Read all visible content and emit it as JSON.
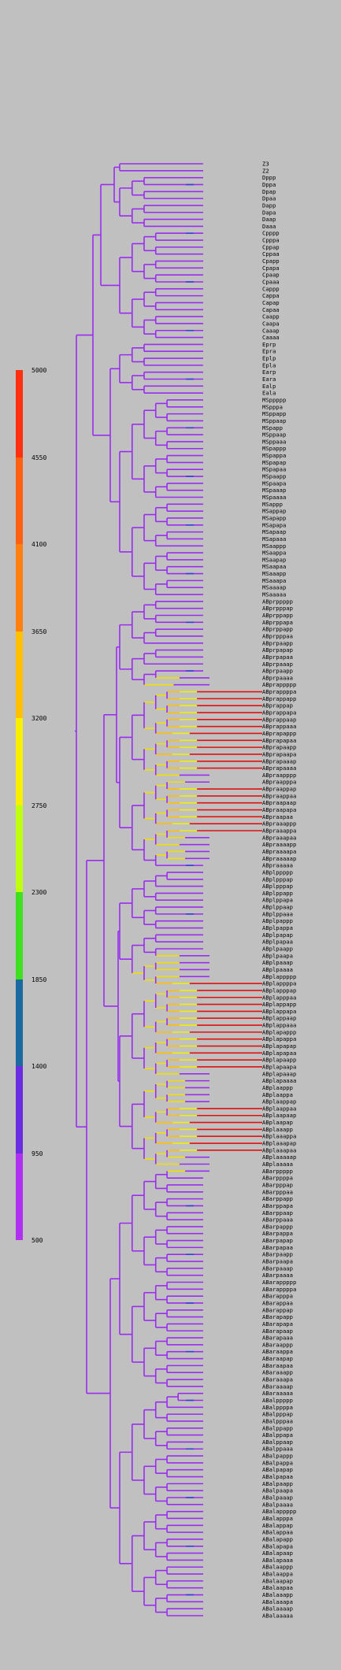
{
  "chart_data": {
    "type": "dendrogram",
    "color_scale": {
      "ticks": [
        5000,
        4550,
        4100,
        3650,
        3200,
        2750,
        2300,
        1850,
        1400,
        950,
        500
      ],
      "ticks_text": [
        "5000",
        "4550",
        "4100",
        "3650",
        "3200",
        "2750",
        "2300",
        "1850",
        "1400",
        "950",
        "500"
      ],
      "bands": [
        {
          "from": 500,
          "to": 950,
          "color": "#b030f0"
        },
        {
          "from": 950,
          "to": 1400,
          "color": "#6a2ce0"
        },
        {
          "from": 1400,
          "to": 1850,
          "color": "#1a6aa0"
        },
        {
          "from": 1850,
          "to": 2300,
          "color": "#40e020"
        },
        {
          "from": 2300,
          "to": 2750,
          "color": "#c0ff10"
        },
        {
          "from": 2750,
          "to": 3200,
          "color": "#f8f000"
        },
        {
          "from": 3200,
          "to": 3650,
          "color": "#ffc000"
        },
        {
          "from": 3650,
          "to": 4100,
          "color": "#ff8010"
        },
        {
          "from": 4100,
          "to": 4550,
          "color": "#ff6010"
        },
        {
          "from": 4550,
          "to": 5000,
          "color": "#ff3010"
        }
      ]
    },
    "leaves": [
      "Z3",
      "Z2",
      "Dppp",
      "Dppa",
      "Dpap",
      "Dpaa",
      "Dapp",
      "Dapa",
      "Daap",
      "Daaa",
      "Cpppp",
      "Cpppa",
      "Cppap",
      "Cppaa",
      "Cpapp",
      "Cpapa",
      "Cpaap",
      "Cpaaa",
      "Cappp",
      "Cappa",
      "Capap",
      "Capaa",
      "Caapp",
      "Caapa",
      "Caaap",
      "Caaaa",
      "Eprp",
      "Epra",
      "Eplp",
      "Epla",
      "Earp",
      "Eara",
      "Ealp",
      "Eala",
      "MSppppp",
      "MSpppa",
      "MSppapp",
      "MSppaap",
      "MSpapp",
      "MSppaap",
      "MSppaaa",
      "MSpappp",
      "MSpappa",
      "MSpapap",
      "MSpapaa",
      "MSpaapp",
      "MSpaapa",
      "MSpaaap",
      "MSpaaaa",
      "MSappp",
      "MSappap",
      "MSapapp",
      "MSapapa",
      "MSapaap",
      "MSapaaa",
      "MSaappp",
      "MSaappa",
      "MSaapap",
      "MSaapaa",
      "MSaaapp",
      "MSaaapa",
      "MSaaaap",
      "MSaaaaa",
      "ABprppppp",
      "ABprpppap",
      "ABprppapp",
      "ABprppapa",
      "ABprppapp",
      "ABprpppaa",
      "ABprpaapp",
      "ABprpapap",
      "ABprpapaa",
      "ABprpaaap",
      "ABprpaapp",
      "ABprpaaaa",
      "ABprappppp",
      "ABprappppa",
      "ABprappapp",
      "ABprappap",
      "ABprappapa",
      "ABprappaap",
      "ABprappaaa",
      "ABprapappp",
      "ABprapapaa",
      "ABprapaapp",
      "ABprapaapa",
      "ABprapaaap",
      "ABprapaaaa",
      "ABpraapppp",
      "ABpraapppa",
      "ABpraappap",
      "ABpraappaa",
      "ABpraapaap",
      "ABpraapapa",
      "ABpraapaa",
      "ABpraaappp",
      "ABpraaappa",
      "ABpraaapaa",
      "ABpraaaapp",
      "ABpraaaapa",
      "ABpraaaaap",
      "ABpraaaaa",
      "ABplppppp",
      "ABplpppap",
      "ABplpppap",
      "ABplppapp",
      "ABplppapa",
      "ABplppaap",
      "ABplppaaa",
      "ABplpappp",
      "ABplpappa",
      "ABplpapap",
      "ABplpapaa",
      "ABplpaapp",
      "ABplpaapa",
      "ABplpaaap",
      "ABplpaaaa",
      "ABplappppp",
      "ABplappppa",
      "ABplapppap",
      "ABplapppaa",
      "ABplappapp",
      "ABplappapa",
      "ABplappaap",
      "ABplappaaa",
      "ABplapappp",
      "ABplapappa",
      "ABplapapap",
      "ABplapapaa",
      "ABplapaapp",
      "ABplapaapa",
      "ABplapaaap",
      "ABplapaaaa",
      "ABplaappp",
      "ABplaappa",
      "ABplaappap",
      "ABplaappaa",
      "ABplaapaap",
      "ABplaapap",
      "ABplaaapp",
      "ABplaaappa",
      "ABplaaapap",
      "ABplaaapaa",
      "ABplaaaaap",
      "ABplaaaaa",
      "ABarppppp",
      "ABarppppa",
      "ABarpppap",
      "ABarpppaa",
      "ABarppapp",
      "ABarppapa",
      "ABarppaap",
      "ABarppaaa",
      "ABarpappp",
      "ABarpappa",
      "ABarpapap",
      "ABarpapaa",
      "ABarpaapp",
      "ABarpaapa",
      "ABarpaaap",
      "ABarpaaaa",
      "ABarappppp",
      "ABarappppa",
      "ABarapppa",
      "ABarappaa",
      "ABarappap",
      "ABarapapp",
      "ABarapapa",
      "ABarapaap",
      "ABarapaaa",
      "ABaraappp",
      "ABaraappa",
      "ABaraapap",
      "ABaraapaa",
      "ABaraaapp",
      "ABaraaapa",
      "ABaraaaap",
      "ABaraaaaa",
      "ABalppppp",
      "ABalppppa",
      "ABalpppap",
      "ABalpppaa",
      "ABalppapp",
      "ABalppapa",
      "ABalppaap",
      "ABalppaaa",
      "ABalpappp",
      "ABalpappa",
      "ABalpapap",
      "ABalpapaa",
      "ABalpaapp",
      "ABalpaapa",
      "ABalpaaap",
      "ABalpaaaa",
      "ABalappppp",
      "ABalapppa",
      "ABalappap",
      "ABalappaa",
      "ABalapapp",
      "ABalapapa",
      "ABalapaap",
      "ABalapaaa",
      "ABalaappp",
      "ABalaappa",
      "ABalaapap",
      "ABalaapaa",
      "ABalaaapp",
      "ABalaaapa",
      "ABalaaaap",
      "ABalaaaaa"
    ],
    "hot_leaf_ranges": [
      [
        76,
        87
      ],
      [
        90,
        96
      ],
      [
        118,
        130
      ],
      [
        136,
        142
      ]
    ],
    "warm_leaf_ranges": [
      [
        74,
        100
      ],
      [
        114,
        145
      ]
    ]
  }
}
